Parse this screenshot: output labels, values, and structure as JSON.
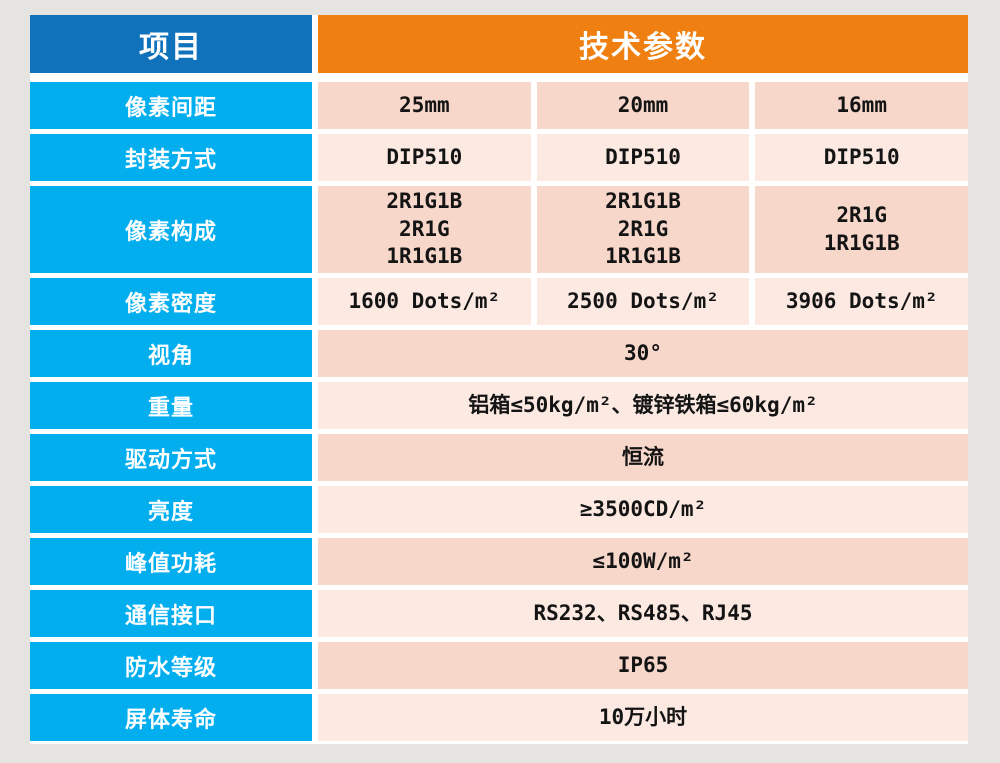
{
  "header": {
    "item_label": "项目",
    "params_label": "技术参数"
  },
  "rows": [
    {
      "label": "像素间距",
      "shade": "dark",
      "values": [
        "25mm",
        "20mm",
        "16mm"
      ]
    },
    {
      "label": "封装方式",
      "shade": "light",
      "values": [
        "DIP510",
        "DIP510",
        "DIP510"
      ]
    },
    {
      "label": "像素构成",
      "shade": "dark",
      "tall": true,
      "values": [
        [
          "2R1G1B",
          "2R1G",
          "1R1G1B"
        ],
        [
          "2R1G1B",
          "2R1G",
          "1R1G1B"
        ],
        [
          "2R1G",
          "1R1G1B"
        ]
      ]
    },
    {
      "label": "像素密度",
      "shade": "light",
      "values": [
        "1600 Dots/m²",
        "2500 Dots/m²",
        "3906 Dots/m²"
      ]
    },
    {
      "label": "视角",
      "shade": "dark",
      "value": "30°"
    },
    {
      "label": "重量",
      "shade": "light",
      "value": "铝箱≤50kg/m²、镀锌铁箱≤60kg/m²"
    },
    {
      "label": "驱动方式",
      "shade": "dark",
      "value": "恒流"
    },
    {
      "label": "亮度",
      "shade": "light",
      "value": "≥3500CD/m²"
    },
    {
      "label": "峰值功耗",
      "shade": "dark",
      "value": "≤100W/m²"
    },
    {
      "label": "通信接口",
      "shade": "light",
      "value": "RS232、RS485、RJ45"
    },
    {
      "label": "防水等级",
      "shade": "dark",
      "value": "IP65"
    },
    {
      "label": "屏体寿命",
      "shade": "light",
      "value": "10万小时"
    }
  ],
  "colors": {
    "header_blue": "#1072bb",
    "header_orange": "#ef7f11",
    "label_cyan": "#03aeef",
    "row_dark": "#f8d7cb",
    "row_light": "#fbe9e2",
    "background": "#e6e4e1",
    "gap_white": "#ffffff",
    "value_text": "#141414"
  }
}
